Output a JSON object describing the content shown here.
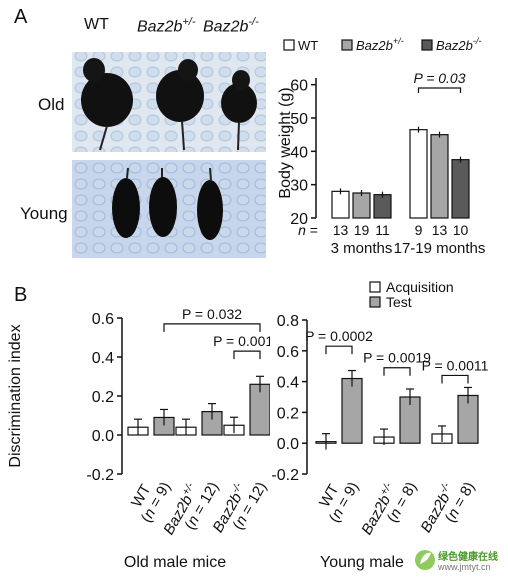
{
  "panel_a": {
    "letter": "A",
    "photo": {
      "header_wt": "WT",
      "header_het": "Baz2b",
      "header_het_sup": "+/-",
      "header_ko": "Baz2b",
      "header_ko_sup": "-/-",
      "row_old": "Old",
      "row_young": "Young"
    }
  },
  "panel_b": {
    "letter": "B"
  },
  "colors": {
    "wt": "#ffffff",
    "het": "#a6a6a6",
    "ko": "#5a5a5a",
    "acq": "#ffffff",
    "test": "#a6a6a6",
    "stroke": "#111111"
  },
  "chart_data": [
    {
      "id": "body-weight",
      "type": "bar",
      "ylabel": "Body weight (g)",
      "ylim": [
        20,
        65
      ],
      "yticks": [
        20,
        30,
        40,
        50,
        60
      ],
      "legend": {
        "placement": "top",
        "entries": [
          {
            "label": "WT",
            "italic": false,
            "sup": ""
          },
          {
            "label": "Baz2b",
            "italic": true,
            "sup": "+/-"
          },
          {
            "label": "Baz2b",
            "italic": true,
            "sup": "-/-"
          }
        ]
      },
      "series_names": [
        "WT",
        "Baz2b+/-",
        "Baz2b-/-"
      ],
      "groups": [
        {
          "label": "3 months",
          "values": [
            28,
            27.5,
            27
          ],
          "n": [
            "13",
            "19",
            "11"
          ]
        },
        {
          "label": "17-19 months",
          "values": [
            46.5,
            45,
            37.5
          ],
          "n": [
            "9",
            "13",
            "10"
          ]
        }
      ],
      "n_prefix": "n =",
      "annotations": [
        {
          "text": "P = 0.03",
          "from": [
            1,
            0
          ],
          "to": [
            1,
            2
          ]
        }
      ]
    },
    {
      "id": "old-discrimination",
      "type": "bar",
      "ylabel": "Discrimination index",
      "ylim": [
        -0.2,
        0.6
      ],
      "yticks": [
        "-0.2",
        "0.0",
        "0.2",
        "0.4",
        "0.6"
      ],
      "xlabel": "Old male mice",
      "legend": {
        "placement": "top",
        "entries": [
          "Acquisition",
          "Test"
        ]
      },
      "groups": [
        {
          "label": "WT",
          "italic": false,
          "sup": "",
          "nlabel": "(n = 9)",
          "values": [
            0.04,
            0.09
          ]
        },
        {
          "label": "Baz2b",
          "italic": true,
          "sup": "+/-",
          "nlabel": "(n = 12)",
          "values": [
            0.04,
            0.12
          ]
        },
        {
          "label": "Baz2b",
          "italic": true,
          "sup": "-/-",
          "nlabel": "(n = 12)",
          "values": [
            0.05,
            0.26
          ]
        }
      ],
      "annotations": [
        {
          "text": "P = 0.032",
          "from": [
            0,
            1
          ],
          "to": [
            2,
            1
          ],
          "level": 0.57
        },
        {
          "text": "P = 0.0014",
          "from": [
            2,
            0
          ],
          "to": [
            2,
            1
          ],
          "level": 0.43
        }
      ]
    },
    {
      "id": "young-discrimination",
      "type": "bar",
      "ylim": [
        -0.2,
        0.8
      ],
      "yticks": [
        "-0.2",
        "0.0",
        "0.2",
        "0.4",
        "0.6",
        "0.8"
      ],
      "xlabel": "Young male",
      "groups": [
        {
          "label": "WT",
          "italic": false,
          "sup": "",
          "nlabel": "(n = 9)",
          "values": [
            0.01,
            0.42
          ]
        },
        {
          "label": "Baz2b",
          "italic": true,
          "sup": "+/-",
          "nlabel": "(n = 8)",
          "values": [
            0.04,
            0.3
          ]
        },
        {
          "label": "Baz2b",
          "italic": true,
          "sup": "-/-",
          "nlabel": "(n = 8)",
          "values": [
            0.06,
            0.31
          ]
        }
      ],
      "annotations": [
        {
          "text": "P = 0.0002",
          "from": [
            0,
            0
          ],
          "to": [
            0,
            1
          ],
          "level": 0.63
        },
        {
          "text": "P = 0.0019",
          "from": [
            1,
            0
          ],
          "to": [
            1,
            1
          ],
          "level": 0.49
        },
        {
          "text": "P = 0.0011",
          "from": [
            2,
            0
          ],
          "to": [
            2,
            1
          ],
          "level": 0.44
        }
      ]
    }
  ],
  "watermark": {
    "text": "绿色健康在线",
    "url": "www.jmtyt.cn"
  }
}
